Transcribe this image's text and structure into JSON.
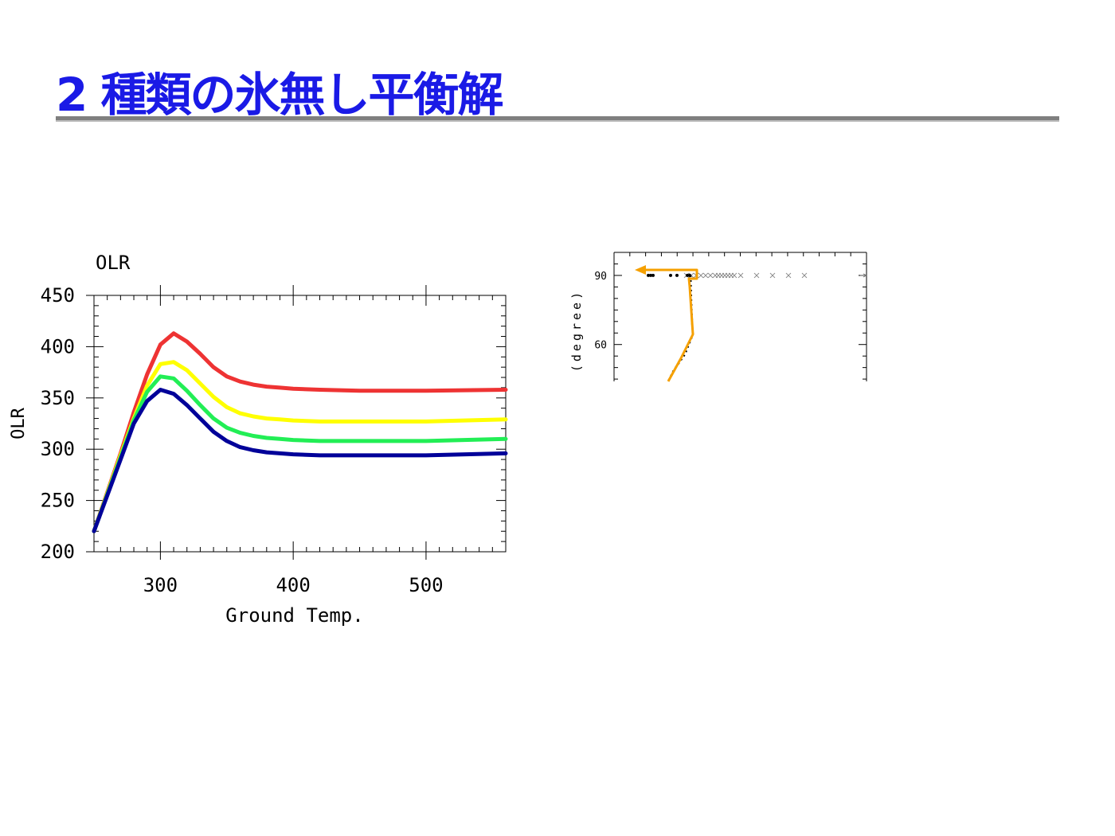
{
  "slide": {
    "title": "2 種類の氷無し平衡解"
  },
  "colors": {
    "title": "#1a1ae6",
    "red": "#ee3333",
    "yellow": "#ffff00",
    "green": "#22ee55",
    "blue": "#000099",
    "orange": "#f5a000"
  },
  "chart_data": [
    {
      "type": "line",
      "title": "OLR",
      "xlabel": "Ground Temp.",
      "ylabel": "OLR",
      "xlim": [
        250,
        560
      ],
      "ylim": [
        200,
        450
      ],
      "xticks": [
        300,
        400,
        500
      ],
      "yticks": [
        200,
        250,
        300,
        350,
        400,
        450
      ],
      "grid": false,
      "legend": "none",
      "series": [
        {
          "color": "#ee3333",
          "x": [
            250,
            260,
            270,
            280,
            290,
            300,
            310,
            320,
            330,
            340,
            350,
            360,
            370,
            380,
            390,
            400,
            420,
            450,
            500,
            560
          ],
          "y": [
            220,
            258,
            296,
            336,
            373,
            402,
            413,
            405,
            393,
            380,
            371,
            366,
            363,
            361,
            360,
            359,
            358,
            357,
            357,
            358
          ]
        },
        {
          "color": "#ffff00",
          "x": [
            250,
            260,
            270,
            280,
            290,
            300,
            310,
            320,
            330,
            340,
            350,
            360,
            370,
            380,
            390,
            400,
            420,
            450,
            500,
            560
          ],
          "y": [
            220,
            257,
            294,
            330,
            362,
            383,
            385,
            377,
            364,
            351,
            341,
            335,
            332,
            330,
            329,
            328,
            327,
            327,
            327,
            329
          ]
        },
        {
          "color": "#22ee55",
          "x": [
            250,
            260,
            270,
            280,
            290,
            300,
            310,
            320,
            330,
            340,
            350,
            360,
            370,
            380,
            390,
            400,
            420,
            450,
            500,
            560
          ],
          "y": [
            220,
            256,
            292,
            328,
            356,
            371,
            369,
            357,
            343,
            330,
            321,
            316,
            313,
            311,
            310,
            309,
            308,
            308,
            308,
            310
          ]
        },
        {
          "color": "#000099",
          "x": [
            250,
            260,
            270,
            280,
            290,
            300,
            310,
            320,
            330,
            340,
            350,
            360,
            370,
            380,
            390,
            400,
            420,
            450,
            500,
            560
          ],
          "y": [
            220,
            255,
            290,
            325,
            347,
            358,
            354,
            343,
            330,
            317,
            308,
            302,
            299,
            297,
            296,
            295,
            294,
            294,
            294,
            296
          ]
        }
      ]
    },
    {
      "type": "scatter",
      "ylabel": "(degree)",
      "yticks": [
        60,
        90
      ],
      "ylim": [
        44,
        100
      ],
      "grid": false,
      "legend": "none"
    }
  ]
}
